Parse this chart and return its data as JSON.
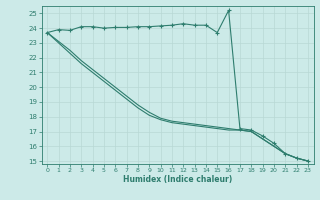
{
  "xlabel": "Humidex (Indice chaleur)",
  "bg_color": "#cceae8",
  "line_color": "#2e7d6e",
  "grid_color": "#b8d8d5",
  "xlim": [
    -0.5,
    23.5
  ],
  "ylim": [
    14.8,
    25.5
  ],
  "yticks": [
    15,
    16,
    17,
    18,
    19,
    20,
    21,
    22,
    23,
    24,
    25
  ],
  "xticks": [
    0,
    1,
    2,
    3,
    4,
    5,
    6,
    7,
    8,
    9,
    10,
    11,
    12,
    13,
    14,
    15,
    16,
    17,
    18,
    19,
    20,
    21,
    22,
    23
  ],
  "line1_x": [
    0,
    1,
    2,
    3,
    4,
    5,
    6,
    7,
    8,
    9,
    10,
    11,
    12,
    13,
    14,
    15,
    16,
    17,
    18,
    19,
    20,
    21,
    22,
    23
  ],
  "line1_y": [
    23.7,
    23.9,
    23.85,
    24.1,
    24.1,
    24.0,
    24.05,
    24.05,
    24.1,
    24.1,
    24.15,
    24.2,
    24.3,
    24.2,
    24.2,
    23.7,
    25.2,
    17.2,
    17.1,
    16.7,
    16.2,
    15.5,
    15.2,
    15.0
  ],
  "line2_x": [
    0,
    1,
    2,
    3,
    4,
    5,
    6,
    7,
    8,
    9,
    10,
    11,
    12,
    13,
    14,
    15,
    16,
    17,
    18,
    19,
    20,
    21,
    22,
    23
  ],
  "line2_y": [
    23.7,
    23.0,
    22.3,
    21.6,
    21.0,
    20.4,
    19.8,
    19.2,
    18.6,
    18.1,
    17.8,
    17.6,
    17.5,
    17.4,
    17.3,
    17.2,
    17.1,
    17.1,
    17.0,
    16.5,
    16.0,
    15.5,
    15.2,
    15.0
  ],
  "line3_x": [
    0,
    2,
    3,
    4,
    5,
    6,
    7,
    8,
    9,
    10,
    11,
    12,
    13,
    14,
    15,
    16,
    17,
    18,
    19,
    20,
    21,
    22,
    23
  ],
  "line3_y": [
    23.7,
    22.5,
    21.8,
    21.2,
    20.6,
    20.0,
    19.4,
    18.8,
    18.3,
    17.9,
    17.7,
    17.6,
    17.5,
    17.4,
    17.3,
    17.2,
    17.1,
    17.0,
    16.5,
    16.0,
    15.5,
    15.2,
    15.0
  ]
}
